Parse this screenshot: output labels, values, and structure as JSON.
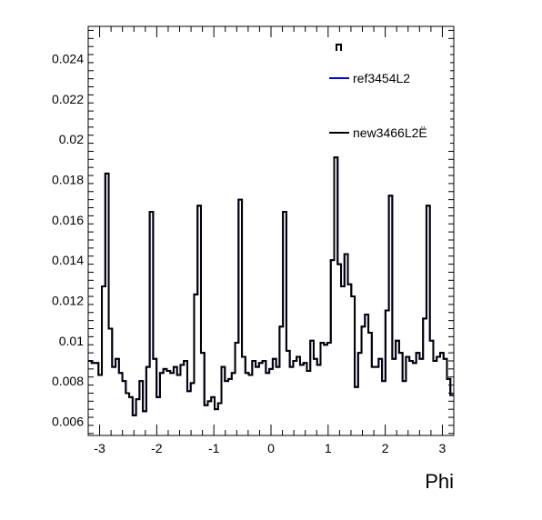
{
  "chart_data": {
    "type": "step",
    "xlabel": "Phi",
    "ylabel": "",
    "title": "",
    "xlim": [
      -3.2,
      3.2
    ],
    "ylim": [
      0.0053,
      0.0256
    ],
    "grid": false,
    "legend_position": "top-right",
    "xticks": [
      {
        "v": -3,
        "label": "-3"
      },
      {
        "v": -2,
        "label": "-2"
      },
      {
        "v": -1,
        "label": "-1"
      },
      {
        "v": 0,
        "label": "0"
      },
      {
        "v": 1,
        "label": "1"
      },
      {
        "v": 2,
        "label": "2"
      },
      {
        "v": 3,
        "label": "3"
      }
    ],
    "yticks": [
      {
        "v": 0.006,
        "label": "0.006"
      },
      {
        "v": 0.008,
        "label": "0.008"
      },
      {
        "v": 0.01,
        "label": "0.01"
      },
      {
        "v": 0.012,
        "label": "0.012"
      },
      {
        "v": 0.014,
        "label": "0.014"
      },
      {
        "v": 0.016,
        "label": "0.016"
      },
      {
        "v": 0.018,
        "label": "0.018"
      },
      {
        "v": 0.02,
        "label": "0.02"
      },
      {
        "v": 0.022,
        "label": "0.022"
      },
      {
        "v": 0.024,
        "label": "0.024"
      }
    ],
    "series": [
      {
        "name": "ref3454L2",
        "color": "#0000cc",
        "bin_edges": [
          -3.2,
          3.2
        ],
        "values": [
          0.009,
          0.0089,
          0.0089,
          0.0083,
          0.0127,
          0.0183,
          0.0106,
          0.0087,
          0.0091,
          0.0084,
          0.008,
          0.0074,
          0.0072,
          0.0063,
          0.0071,
          0.008,
          0.0065,
          0.0087,
          0.0164,
          0.0091,
          0.0072,
          0.0084,
          0.0086,
          0.0085,
          0.0084,
          0.0087,
          0.0083,
          0.0088,
          0.009,
          0.0075,
          0.0079,
          0.0123,
          0.0167,
          0.0094,
          0.0068,
          0.007,
          0.0072,
          0.0066,
          0.0069,
          0.0087,
          0.008,
          0.0081,
          0.0084,
          0.0099,
          0.017,
          0.0092,
          0.0084,
          0.0083,
          0.009,
          0.0087,
          0.0089,
          0.009,
          0.0084,
          0.0086,
          0.0091,
          0.0087,
          0.0107,
          0.0164,
          0.0095,
          0.0087,
          0.009,
          0.0092,
          0.0088,
          0.0089,
          0.0085,
          0.01,
          0.0091,
          0.0088,
          0.0099,
          0.0098,
          0.0099,
          0.014,
          0.0191,
          0.0138,
          0.0127,
          0.0143,
          0.0128,
          0.0122,
          0.0077,
          0.0094,
          0.0107,
          0.0113,
          0.0104,
          0.0087,
          0.0087,
          0.0091,
          0.008,
          0.0115,
          0.0172,
          0.0091,
          0.01,
          0.0094,
          0.008,
          0.0092,
          0.009,
          0.0089,
          0.0094,
          0.0091,
          0.0111,
          0.0167,
          0.01,
          0.009,
          0.0092,
          0.0094,
          0.0091,
          0.0081,
          0.0073
        ]
      },
      {
        "name": "new3466L2Ë",
        "color": "#000000",
        "bin_edges": [
          -3.2,
          3.2
        ],
        "values": [
          0.009,
          0.0089,
          0.0089,
          0.0083,
          0.0127,
          0.0183,
          0.0106,
          0.0087,
          0.0091,
          0.0084,
          0.008,
          0.0074,
          0.0072,
          0.0063,
          0.0071,
          0.008,
          0.0065,
          0.0087,
          0.0164,
          0.0091,
          0.0072,
          0.0084,
          0.0086,
          0.0085,
          0.0084,
          0.0087,
          0.0083,
          0.0088,
          0.009,
          0.0075,
          0.0079,
          0.0123,
          0.0167,
          0.0094,
          0.0068,
          0.007,
          0.0072,
          0.0066,
          0.0069,
          0.0087,
          0.008,
          0.0081,
          0.0084,
          0.0099,
          0.017,
          0.0092,
          0.0084,
          0.0083,
          0.009,
          0.0087,
          0.0089,
          0.009,
          0.0084,
          0.0086,
          0.0091,
          0.0087,
          0.0107,
          0.0164,
          0.0095,
          0.0087,
          0.009,
          0.0092,
          0.0088,
          0.0089,
          0.0085,
          0.01,
          0.0091,
          0.0088,
          0.0099,
          0.0098,
          0.0099,
          0.014,
          0.0191,
          0.0138,
          0.0127,
          0.0143,
          0.0128,
          0.0122,
          0.0077,
          0.0094,
          0.0107,
          0.0113,
          0.0104,
          0.0087,
          0.0087,
          0.0091,
          0.008,
          0.0115,
          0.0172,
          0.0091,
          0.01,
          0.0094,
          0.008,
          0.0092,
          0.009,
          0.0089,
          0.0094,
          0.0091,
          0.0111,
          0.0167,
          0.01,
          0.009,
          0.0092,
          0.0094,
          0.0091,
          0.0081,
          0.0073
        ]
      }
    ]
  }
}
